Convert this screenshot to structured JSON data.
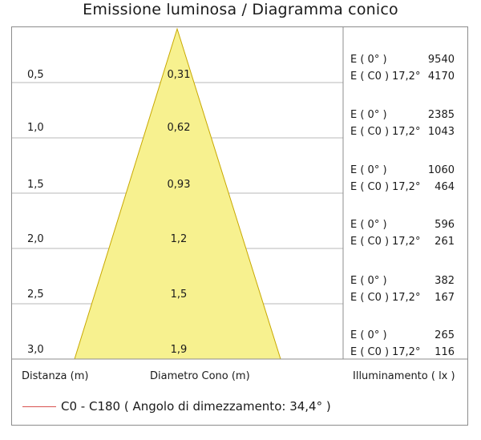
{
  "title": "Emissione luminosa  / Diagramma conico",
  "colors": {
    "cone_fill": "#f7f18f",
    "cone_stroke": "#c8a800",
    "grid": "#b8b8b8",
    "frame": "#8c8c8c",
    "legend_line": "#d9534f"
  },
  "rows": [
    {
      "distance": "0,5",
      "diameter": "0,31",
      "e0_label": "E ( 0° )",
      "e0_value": "9540",
      "ec0_label": "E ( C0 )",
      "angle": "17,2°",
      "ec0_value": "4170"
    },
    {
      "distance": "1,0",
      "diameter": "0,62",
      "e0_label": "E ( 0° )",
      "e0_value": "2385",
      "ec0_label": "E ( C0 )",
      "angle": "17,2°",
      "ec0_value": "1043"
    },
    {
      "distance": "1,5",
      "diameter": "0,93",
      "e0_label": "E ( 0° )",
      "e0_value": "1060",
      "ec0_label": "E ( C0 )",
      "angle": "17,2°",
      "ec0_value": "464"
    },
    {
      "distance": "2,0",
      "diameter": "1,2",
      "e0_label": "E ( 0° )",
      "e0_value": "596",
      "ec0_label": "E ( C0 )",
      "angle": "17,2°",
      "ec0_value": "261"
    },
    {
      "distance": "2,5",
      "diameter": "1,5",
      "e0_label": "E ( 0° )",
      "e0_value": "382",
      "ec0_label": "E ( C0 )",
      "angle": "17,2°",
      "ec0_value": "167"
    },
    {
      "distance": "3,0",
      "diameter": "1,9",
      "e0_label": "E ( 0° )",
      "e0_value": "265",
      "ec0_label": "E ( C0 )",
      "angle": "17,2°",
      "ec0_value": "116"
    }
  ],
  "footer": {
    "distance_label": "Distanza (m)",
    "diameter_label": "Diametro Cono (m)",
    "illuminance_label": "Illuminamento ( lx )"
  },
  "legend": {
    "text": "C0 - C180  ( Angolo di dimezzamento: 34,4° )"
  }
}
